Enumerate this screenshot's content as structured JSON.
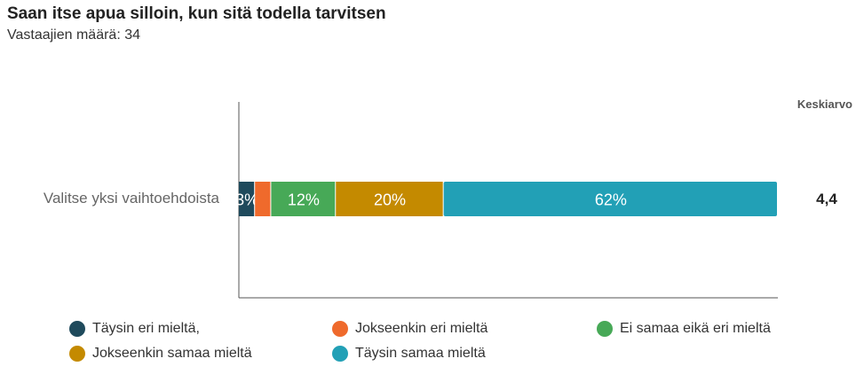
{
  "chart_data": {
    "type": "bar",
    "orientation": "horizontal",
    "stacked": true,
    "title": "Saan itse apua silloin, kun sitä todella tarvitsen",
    "subtitle": "Vastaajien määrä: 34",
    "categories": [
      "Valitse yksi vaihtoehdoista"
    ],
    "series": [
      {
        "name": "Täysin eri mieltä,",
        "values": [
          3
        ],
        "label": "3%",
        "color": "#1f4a5c"
      },
      {
        "name": "Jokseenkin eri mieltä",
        "values": [
          3
        ],
        "label": "",
        "color": "#ef6a2c"
      },
      {
        "name": "Ei samaa eikä eri mieltä",
        "values": [
          12
        ],
        "label": "12%",
        "color": "#47a957"
      },
      {
        "name": "Jokseenkin samaa mieltä",
        "values": [
          20
        ],
        "label": "20%",
        "color": "#c48a00"
      },
      {
        "name": "Täysin samaa mieltä",
        "values": [
          62
        ],
        "label": "62%",
        "color": "#22a0b6"
      }
    ],
    "xlim": [
      0,
      100
    ],
    "average_header": "Keskiarvo",
    "averages": [
      "4,4"
    ],
    "legend_position": "bottom",
    "grid": false
  }
}
